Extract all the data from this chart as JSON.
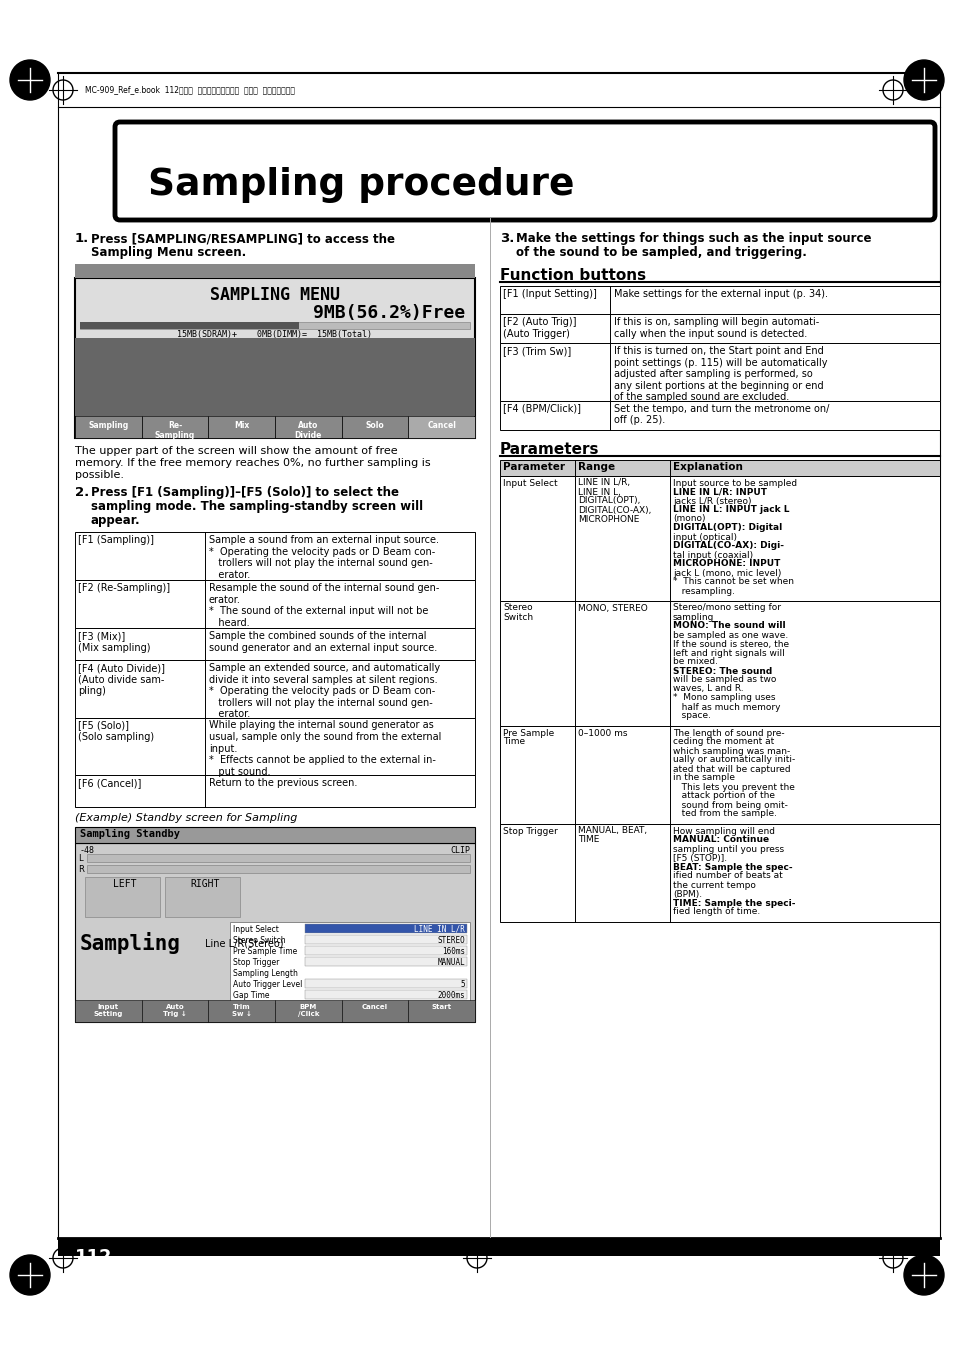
{
  "page_bg": "#ffffff",
  "header_text": "MC-909_Ref_e.book  112ページ  ２００５年３月１日  火曜日  午後３時２９分",
  "title": "Sampling procedure",
  "left_table": [
    [
      "[F1 (Sampling)]",
      "Sample a sound from an external input source.\n*  Operating the velocity pads or D Beam con-\n   trollers will not play the internal sound gen-\n   erator."
    ],
    [
      "[F2 (Re-Sampling)]",
      "Resample the sound of the internal sound gen-\nerator.\n*  The sound of the external input will not be\n   heard."
    ],
    [
      "[F3 (Mix)]\n(Mix sampling)",
      "Sample the combined sounds of the internal\nsound generator and an external input source."
    ],
    [
      "[F4 (Auto Divide)]\n(Auto divide sam-\npling)",
      "Sample an extended source, and automatically\ndivide it into several samples at silent regions.\n*  Operating the velocity pads or D Beam con-\n   trollers will not play the internal sound gen-\n   erator."
    ],
    [
      "[F5 (Solo)]\n(Solo sampling)",
      "While playing the internal sound generator as\nusual, sample only the sound from the external\ninput.\n*  Effects cannot be applied to the external in-\n   put sound."
    ],
    [
      "[F6 (Cancel)]",
      "Return to the previous screen."
    ]
  ],
  "func_table": [
    [
      "[F1 (Input Setting)]",
      "Make settings for the external input (p. 34)."
    ],
    [
      "[F2 (Auto Trig)]\n(Auto Trigger)",
      "If this is on, sampling will begin automati-\ncally when the input sound is detected."
    ],
    [
      "[F3 (Trim Sw)]",
      "If this is turned on, the Start point and End\npoint settings (p. 115) will be automatically\nadjusted after sampling is performed, so\nany silent portions at the beginning or end\nof the sampled sound are excluded."
    ],
    [
      "[F4 (BPM/Click)]",
      "Set the tempo, and turn the metronome on/\noff (p. 25)."
    ]
  ],
  "params_table": [
    [
      "Parameter",
      "Range",
      "Explanation"
    ],
    [
      "Input Select",
      "LINE IN L/R,\nLINE IN L,\nDIGITAL(OPT),\nDIGITAL(CO-AX),\nMICROPHONE",
      "Input source to be sampled\nLINE IN L/R: INPUT\njacks L/R (stereo)\nLINE IN L: INPUT jack L\n(mono)\nDIGITAL(OPT): Digital\ninput (optical)\nDIGITAL(CO-AX): Digi-\ntal input (coaxial)\nMICROPHONE: INPUT\njack L (mono, mic level)\n*  This cannot be set when\n   resampling."
    ],
    [
      "Stereo\nSwitch",
      "MONO, STEREO",
      "Stereo/mono setting for\nsampling\nMONO: The sound will\nbe sampled as one wave.\nIf the sound is stereo, the\nleft and right signals will\nbe mixed.\nSTEREO: The sound\nwill be sampled as two\nwaves, L and R.\n*  Mono sampling uses\n   half as much memory\n   space."
    ],
    [
      "Pre Sample\nTime",
      "0–1000 ms",
      "The length of sound pre-\nceding the moment at\nwhich sampling was man-\nually or automatically initi-\nated that will be captured\nin the sample\n   This lets you prevent the\n   attack portion of the\n   sound from being omit-\n   ted from the sample."
    ],
    [
      "Stop Trigger",
      "MANUAL, BEAT,\nTIME",
      "How sampling will end\nMANUAL: Continue\nsampling until you press\n[F5 (STOP)].\nBEAT: Sample the spec-\nified number of beats at\nthe current tempo\n(BPM).\nTIME: Sample the speci-\nfied length of time."
    ]
  ],
  "page_number": "112"
}
